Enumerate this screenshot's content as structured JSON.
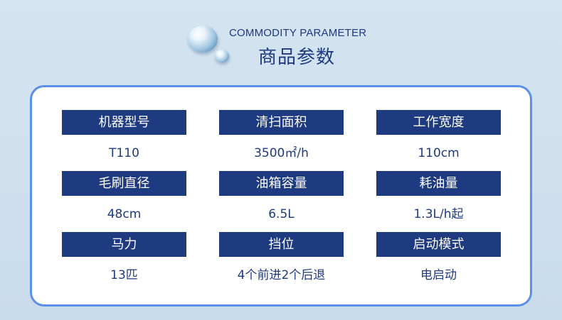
{
  "header": {
    "title_en": "COMMODITY PARAMETER",
    "title_zh": "商品参数"
  },
  "params": [
    {
      "label": "机器型号",
      "value": "T110"
    },
    {
      "label": "清扫面积",
      "value": "3500㎡/h"
    },
    {
      "label": "工作宽度",
      "value": "110cm"
    },
    {
      "label": "毛刷直径",
      "value": "48cm"
    },
    {
      "label": "油箱容量",
      "value": "6.5L"
    },
    {
      "label": "耗油量",
      "value": "1.3L/h起"
    },
    {
      "label": "马力",
      "value": "13匹"
    },
    {
      "label": "挡位",
      "value": "4个前进2个后退"
    },
    {
      "label": "启动模式",
      "value": "电启动"
    }
  ],
  "colors": {
    "accent": "#1e3a80",
    "border": "#5b8fe8"
  }
}
